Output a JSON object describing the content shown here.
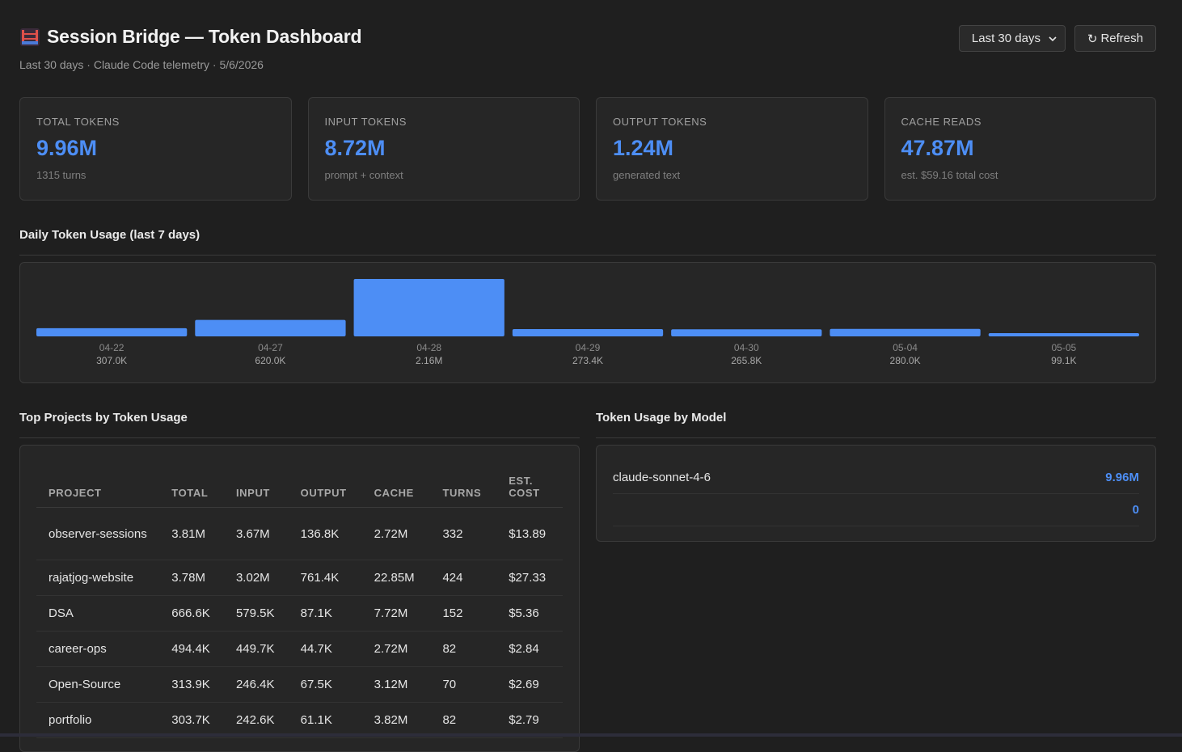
{
  "header": {
    "title": "Session Bridge — Token Dashboard",
    "subtitle": "Last 30 days · Claude Code telemetry · 5/6/2026",
    "range_select": "Last 30 days",
    "refresh_label": "Refresh"
  },
  "stats": [
    {
      "label": "TOTAL TOKENS",
      "value": "9.96M",
      "sub": "1315 turns"
    },
    {
      "label": "INPUT TOKENS",
      "value": "8.72M",
      "sub": "prompt + context"
    },
    {
      "label": "OUTPUT TOKENS",
      "value": "1.24M",
      "sub": "generated text"
    },
    {
      "label": "CACHE READS",
      "value": "47.87M",
      "sub": "est. $59.16 total cost"
    }
  ],
  "daily": {
    "title": "Daily Token Usage (last 7 days)"
  },
  "chart_data": {
    "type": "bar",
    "categories": [
      "04-22",
      "04-27",
      "04-28",
      "04-29",
      "04-30",
      "05-04",
      "05-05"
    ],
    "values": [
      307000,
      620000,
      2160000,
      273400,
      265800,
      280000,
      99100
    ],
    "value_labels": [
      "307.0K",
      "620.0K",
      "2.16M",
      "273.4K",
      "265.8K",
      "280.0K",
      "99.1K"
    ],
    "color": "#4d8ef5",
    "title": "Daily Token Usage (last 7 days)"
  },
  "projects": {
    "title": "Top Projects by Token Usage",
    "columns": [
      "PROJECT",
      "TOTAL",
      "INPUT",
      "OUTPUT",
      "CACHE",
      "TURNS",
      "EST. COST"
    ],
    "rows": [
      [
        "observer-sessions",
        "3.81M",
        "3.67M",
        "136.8K",
        "2.72M",
        "332",
        "$13.89"
      ],
      [
        "rajatjog-website",
        "3.78M",
        "3.02M",
        "761.4K",
        "22.85M",
        "424",
        "$27.33"
      ],
      [
        "DSA",
        "666.6K",
        "579.5K",
        "87.1K",
        "7.72M",
        "152",
        "$5.36"
      ],
      [
        "career-ops",
        "494.4K",
        "449.7K",
        "44.7K",
        "2.72M",
        "82",
        "$2.84"
      ],
      [
        "Open-Source",
        "313.9K",
        "246.4K",
        "67.5K",
        "3.12M",
        "70",
        "$2.69"
      ],
      [
        "portfolio",
        "303.7K",
        "242.6K",
        "61.1K",
        "3.82M",
        "82",
        "$2.79"
      ]
    ]
  },
  "models": {
    "title": "Token Usage by Model",
    "rows": [
      {
        "name": "claude-sonnet-4-6",
        "value": "9.96M"
      },
      {
        "name": "",
        "value": "0"
      }
    ]
  },
  "colors": {
    "accent": "#4d8ef5",
    "background": "#1f1f1f",
    "card": "#262626"
  }
}
